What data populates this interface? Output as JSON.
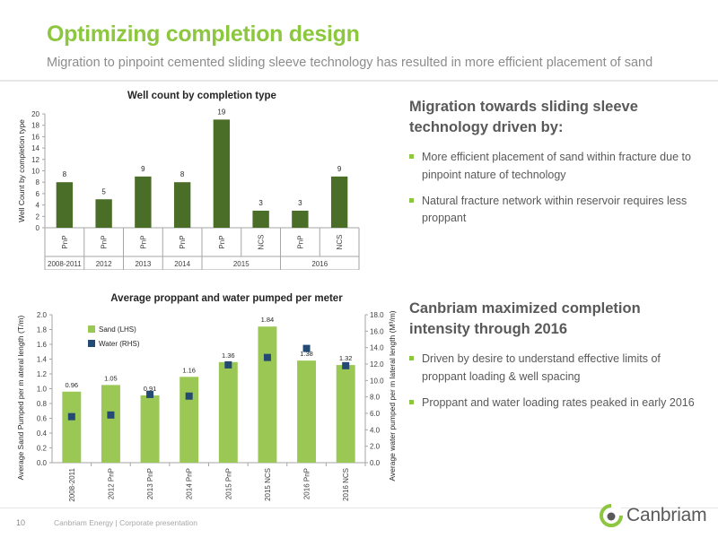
{
  "slide": {
    "title": "Optimizing completion design",
    "subtitle": "Migration to pinpoint cemented sliding sleeve technology has resulted in more efficient placement of sand"
  },
  "right": {
    "section1": {
      "heading": "Migration towards sliding sleeve technology driven by:",
      "bullets": [
        "More efficient placement of sand within fracture due to pinpoint nature of technology",
        "Natural fracture network within reservoir requires less proppant"
      ]
    },
    "section2": {
      "heading": "Canbriam maximized completion intensity through 2016",
      "bullets": [
        "Driven by desire to understand effective limits of proppant loading & well spacing",
        "Proppant and water loading rates peaked in early 2016"
      ]
    }
  },
  "footer": {
    "page_number": "10",
    "text": "Canbriam Energy  |  Corporate presentation",
    "logo_text": "Canbriam"
  },
  "colors": {
    "accent": "#8dc63f",
    "bar_dark": "#4a6d27",
    "bar_light": "#9bc855",
    "marker": "#244a73",
    "text": "#595959"
  },
  "chart_data": [
    {
      "type": "bar",
      "title": "Well count by completion type",
      "ylabel": "Well Count by completion type",
      "xlabel": "",
      "ylim": [
        0,
        20
      ],
      "yticks": [
        0,
        2,
        4,
        6,
        8,
        10,
        12,
        14,
        16,
        18,
        20
      ],
      "categories": [
        "PnP",
        "PnP",
        "PnP",
        "PnP",
        "PnP",
        "NCS",
        "PnP",
        "NCS"
      ],
      "groups": [
        {
          "label": "2008-2011",
          "span": 1
        },
        {
          "label": "2012",
          "span": 1
        },
        {
          "label": "2013",
          "span": 1
        },
        {
          "label": "2014",
          "span": 1
        },
        {
          "label": "2015",
          "span": 2
        },
        {
          "label": "2016",
          "span": 2
        }
      ],
      "values": [
        8,
        5,
        9,
        8,
        19,
        3,
        3,
        9
      ],
      "data_labels": [
        "8",
        "5",
        "9",
        "8",
        "19",
        "3",
        "3",
        "9"
      ],
      "grid": false
    },
    {
      "type": "bar",
      "title": "Average proppant and water pumped per meter",
      "ylabel": "Average Sand Pumped per m ateral length (T/m)",
      "y2label": "Average water pumped per m lateral length (M³/m)",
      "xlabel": "",
      "ylim": [
        0,
        2.0
      ],
      "yticks": [
        "0.0",
        "0.2",
        "0.4",
        "0.6",
        "0.8",
        "1.0",
        "1.2",
        "1.4",
        "1.6",
        "1.8",
        "2.0"
      ],
      "y2lim": [
        0,
        18
      ],
      "y2ticks": [
        "0.0",
        "2.0",
        "4.0",
        "6.0",
        "8.0",
        "10.0",
        "12.0",
        "14.0",
        "16.0",
        "18.0"
      ],
      "categories": [
        "2008-2011",
        "2012 PnP",
        "2013 PnP",
        "2014 PnP",
        "2015 PnP",
        "2015 NCS",
        "2016 PnP",
        "2016 NCS"
      ],
      "series": [
        {
          "name": "Sand (LHS)",
          "type": "bar",
          "axis": "left",
          "values": [
            0.96,
            1.05,
            0.91,
            1.16,
            1.36,
            1.84,
            1.38,
            1.32
          ],
          "data_labels": [
            "0.96",
            "1.05",
            "0.91",
            "1.16",
            "1.36",
            "1.84",
            "1.38",
            "1.32"
          ]
        },
        {
          "name": "Water (RHS)",
          "type": "scatter",
          "axis": "right",
          "values": [
            5.6,
            5.8,
            8.3,
            8.1,
            11.9,
            12.8,
            13.9,
            11.8
          ]
        }
      ],
      "legend": "top-left",
      "grid": false
    }
  ]
}
